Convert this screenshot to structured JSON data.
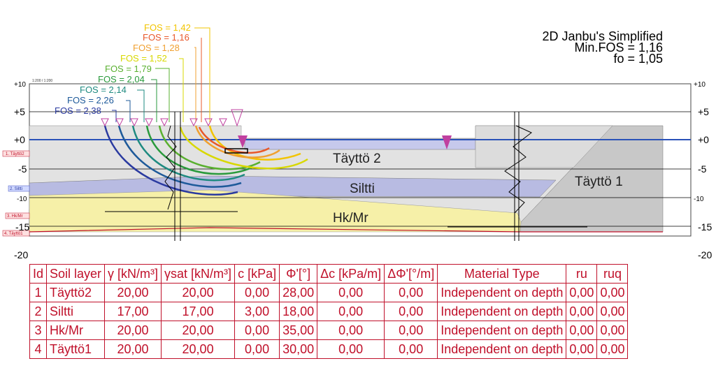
{
  "header": {
    "line1": "2D Janbu's Simplified",
    "line2": "Min.FOS = 1,16",
    "line3": "fo = 1,05"
  },
  "scale_label": "1:200 / 1:200",
  "fos_labels": [
    {
      "text": "FOS = 1,42",
      "color": "#f2c400"
    },
    {
      "text": "FOS = 1,16",
      "color": "#e8582a"
    },
    {
      "text": "FOS = 1,28",
      "color": "#f0a030"
    },
    {
      "text": "FOS = 1,52",
      "color": "#d8d800"
    },
    {
      "text": "FOS = 1,79",
      "color": "#5ab030"
    },
    {
      "text": "FOS = 2,04",
      "color": "#2a9a3c"
    },
    {
      "text": "FOS = 2,14",
      "color": "#1e8a80"
    },
    {
      "text": "FOS = 2,26",
      "color": "#1e5a9a"
    },
    {
      "text": "FOS = 2,38",
      "color": "#2a3aa0"
    }
  ],
  "left_axis": [
    "+10",
    "+5",
    "+0",
    "-5",
    "-10",
    "-15",
    "-20"
  ],
  "right_axis": [
    "+10",
    "+5",
    "+0",
    "-5",
    "-10",
    "-15",
    "-20"
  ],
  "layer_labels": [
    "Täyttö 2",
    "Siltti",
    "Hk/Mr",
    "Täyttö 1"
  ],
  "side_tags": [
    "1. Täyttö2",
    "2. Siltti",
    "3. Hk/Mr",
    "4. Täyttö1"
  ],
  "colors": {
    "fill_grey": "#e2e2e2",
    "fill_dark_grey": "#c8c8c8",
    "silt": "#b8bbe2",
    "sand": "#f6f0a8",
    "water": "#2a52b8",
    "marker": "#c040a0",
    "table_red": "#c0102a"
  },
  "table": {
    "headers": [
      "Id",
      "Soil layer",
      "γ [kN/m³]",
      "γsat [kN/m³]",
      "c [kPa]",
      "Φ'[°]",
      "Δc [kPa/m]",
      "ΔΦ'[°/m]",
      "Material Type",
      "ru",
      "ruq"
    ],
    "rows": [
      [
        "1",
        "Täyttö2",
        "20,00",
        "20,00",
        "0,00",
        "28,00",
        "0,00",
        "0,00",
        "Independent on depth",
        "0,00",
        "0,00"
      ],
      [
        "2",
        "Siltti",
        "17,00",
        "17,00",
        "3,00",
        "18,00",
        "0,00",
        "0,00",
        "Independent on depth",
        "0,00",
        "0,00"
      ],
      [
        "3",
        "Hk/Mr",
        "20,00",
        "20,00",
        "0,00",
        "35,00",
        "0,00",
        "0,00",
        "Independent on depth",
        "0,00",
        "0,00"
      ],
      [
        "4",
        "Täyttö1",
        "20,00",
        "20,00",
        "0,00",
        "30,00",
        "0,00",
        "0,00",
        "Independent on depth",
        "0,00",
        "0,00"
      ]
    ]
  }
}
